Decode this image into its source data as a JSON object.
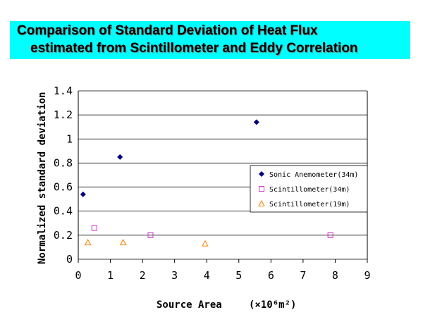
{
  "title": {
    "line1": "Comparison of  Standard Deviation of Heat Flux",
    "line2": "estimated from Scintillometer and Eddy Correlation"
  },
  "chart_data": {
    "type": "scatter",
    "xlabel": "Source Area",
    "xlabel_unit": "(×10⁶m²)",
    "ylabel": "Normalized standard deviation",
    "xlim": [
      0,
      9
    ],
    "ylim": [
      0,
      1.4
    ],
    "x_ticks": [
      "0",
      "1",
      "2",
      "3",
      "4",
      "5",
      "6",
      "7",
      "8",
      "9"
    ],
    "y_ticks": [
      "0",
      "0.2",
      "0.4",
      "0.6",
      "0.8",
      "1",
      "1.2",
      "1.4"
    ],
    "y_tick_values": [
      0,
      0.2,
      0.4,
      0.6,
      0.8,
      1.0,
      1.2,
      1.4
    ],
    "grid": "horizontal",
    "legend_position": "right",
    "series": [
      {
        "name": "Sonic Anemometer(34m)",
        "marker": "diamond",
        "color": "#000080",
        "points": [
          [
            0.15,
            0.54
          ],
          [
            1.3,
            0.85
          ],
          [
            5.55,
            1.14
          ]
        ]
      },
      {
        "name": "Scintillometer(34m)",
        "marker": "square",
        "color": "#cc33cc",
        "points": [
          [
            0.5,
            0.26
          ],
          [
            2.25,
            0.2
          ],
          [
            7.85,
            0.2
          ]
        ]
      },
      {
        "name": "Scintillometer(19m)",
        "marker": "triangle",
        "color": "#ff8000",
        "points": [
          [
            0.3,
            0.14
          ],
          [
            1.4,
            0.14
          ],
          [
            3.95,
            0.13
          ]
        ]
      }
    ]
  }
}
